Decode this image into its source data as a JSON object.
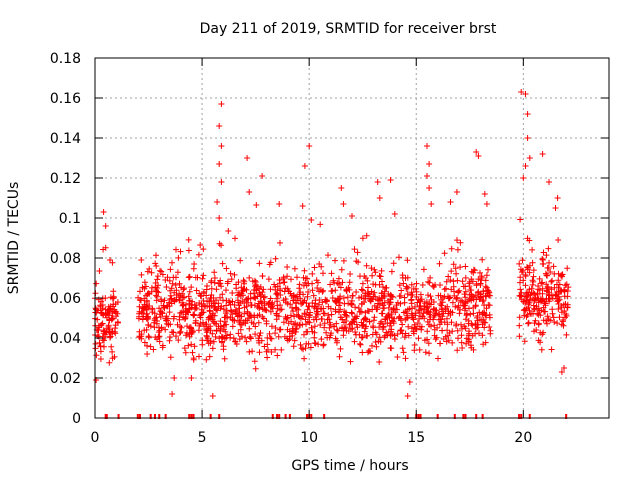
{
  "chart_data": {
    "type": "scatter",
    "title": "Day 211 of 2019, SRMTID for receiver brst",
    "xlabel": "GPS time / hours",
    "ylabel": "SRMTID / TECUs",
    "xlim": [
      0,
      24
    ],
    "ylim": [
      0,
      0.18
    ],
    "x_ticks": [
      0,
      5,
      10,
      15,
      20
    ],
    "x_tick_labels": [
      "0",
      "5",
      "10",
      "15",
      "20"
    ],
    "y_ticks": [
      0,
      0.02,
      0.04,
      0.06,
      0.08,
      0.1,
      0.12,
      0.14,
      0.16,
      0.18
    ],
    "y_tick_labels": [
      "0",
      "0.02",
      "0.04",
      "0.06",
      "0.08",
      "0.1",
      "0.12",
      "0.14",
      "0.16",
      "0.18"
    ],
    "grid": true,
    "marker": "plus",
    "color": "#ff0000",
    "series": [
      {
        "name": "brst",
        "segments": [
          {
            "x_start": 0.0,
            "x_end": 1.1,
            "base_min": 0.025,
            "base_max": 0.072,
            "n": 120
          },
          {
            "x_start": 2.0,
            "x_end": 18.5,
            "base_min": 0.022,
            "base_max": 0.085,
            "n": 1500
          },
          {
            "x_start": 19.8,
            "x_end": 22.1,
            "base_min": 0.03,
            "base_max": 0.09,
            "n": 220
          }
        ],
        "notable_points": [
          [
            0.05,
            0.019
          ],
          [
            0.4,
            0.103
          ],
          [
            0.5,
            0.096
          ],
          [
            0.7,
            0.079
          ],
          [
            3.6,
            0.012
          ],
          [
            3.7,
            0.02
          ],
          [
            4.5,
            0.02
          ],
          [
            5.5,
            0.011
          ],
          [
            5.9,
            0.157
          ],
          [
            5.8,
            0.146
          ],
          [
            5.9,
            0.136
          ],
          [
            5.8,
            0.127
          ],
          [
            5.9,
            0.118
          ],
          [
            5.7,
            0.108
          ],
          [
            5.8,
            0.1
          ],
          [
            7.1,
            0.13
          ],
          [
            7.2,
            0.113
          ],
          [
            7.8,
            0.121
          ],
          [
            8.6,
            0.107
          ],
          [
            9.7,
            0.106
          ],
          [
            9.8,
            0.126
          ],
          [
            10.0,
            0.136
          ],
          [
            10.1,
            0.099
          ],
          [
            11.5,
            0.115
          ],
          [
            11.6,
            0.107
          ],
          [
            12.0,
            0.101
          ],
          [
            13.2,
            0.118
          ],
          [
            13.3,
            0.11
          ],
          [
            13.8,
            0.119
          ],
          [
            14.0,
            0.102
          ],
          [
            14.6,
            0.011
          ],
          [
            14.7,
            0.018
          ],
          [
            15.5,
            0.136
          ],
          [
            15.6,
            0.127
          ],
          [
            15.5,
            0.121
          ],
          [
            15.6,
            0.115
          ],
          [
            15.7,
            0.107
          ],
          [
            16.6,
            0.108
          ],
          [
            16.9,
            0.113
          ],
          [
            17.8,
            0.133
          ],
          [
            17.9,
            0.131
          ],
          [
            18.2,
            0.112
          ],
          [
            18.3,
            0.107
          ],
          [
            19.9,
            0.163
          ],
          [
            20.1,
            0.162
          ],
          [
            20.2,
            0.152
          ],
          [
            20.2,
            0.14
          ],
          [
            20.0,
            0.12
          ],
          [
            20.1,
            0.126
          ],
          [
            20.3,
            0.13
          ],
          [
            20.9,
            0.132
          ],
          [
            21.2,
            0.118
          ],
          [
            21.5,
            0.105
          ],
          [
            21.6,
            0.11
          ],
          [
            21.8,
            0.023
          ],
          [
            21.9,
            0.025
          ]
        ],
        "zero_value_hours": [
          0.5,
          0.55,
          1.1,
          2.0,
          2.1,
          2.6,
          2.8,
          3.0,
          3.3,
          4.4,
          4.5,
          4.6,
          5.4,
          5.8,
          8.3,
          8.5,
          8.6,
          8.9,
          9.1,
          9.9,
          10.0,
          10.1,
          10.7,
          14.6,
          15.0,
          15.1,
          15.2,
          16.0,
          16.8,
          17.2,
          17.3,
          17.8,
          18.1,
          19.8,
          19.9,
          20.3,
          22.0
        ]
      }
    ]
  }
}
